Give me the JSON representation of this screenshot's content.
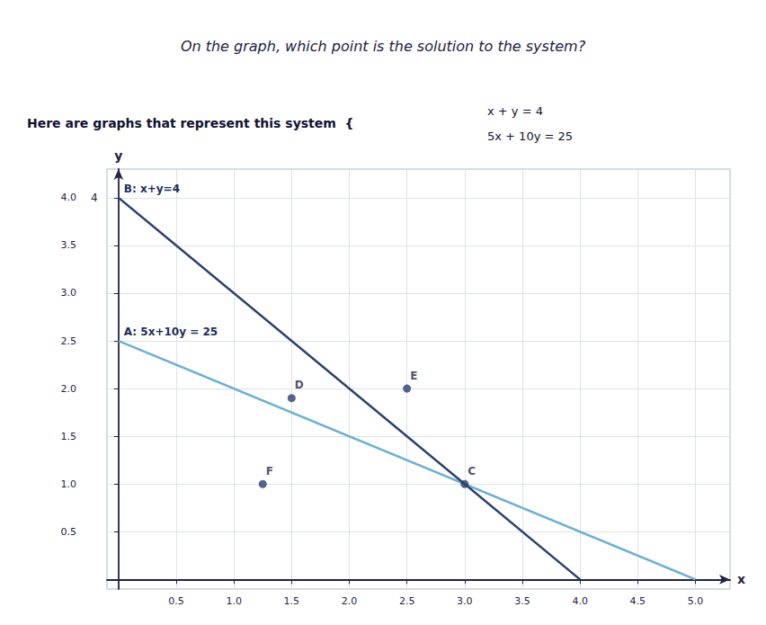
{
  "chart_data": {
    "type": "line",
    "title": "On the graph, which point is the solution to the system?",
    "subtitle": "Here are graphs that represent this system  {",
    "annotations": [
      {
        "text": "x + y = 4"
      },
      {
        "text": "5x + 10y = 25"
      },
      {
        "text": "4",
        "x": -0.18,
        "y": 4.0
      }
    ],
    "xlabel": "x",
    "ylabel": "y",
    "series": [
      {
        "name": "A: 5x+10y = 25",
        "type": "line",
        "color": "#6ab0d4",
        "x": [
          0.0,
          5.0
        ],
        "values": [
          2.5,
          0.0
        ]
      },
      {
        "name": "B: x+y=4",
        "type": "line",
        "color": "#2a3f6f",
        "x": [
          0,
          4.0
        ],
        "values": [
          4.0,
          0.0
        ]
      },
      {
        "type": "scatter",
        "color": "#2a3f6f",
        "marker": "circle",
        "x": [
          1.5,
          2.5,
          3.0,
          1.25
        ],
        "values": [
          1.9,
          2.0,
          1.0,
          1.0
        ],
        "labels": [
          "D",
          "E",
          "C",
          "F"
        ]
      }
    ],
    "xlim": [
      -0.1,
      5.3
    ],
    "ylim": [
      -0.1,
      4.3
    ],
    "xticks": [
      0.5,
      {
        "value": 1.0,
        "label": "1.0"
      },
      1.5,
      {
        "value": 2.0,
        "label": "2.0"
      },
      2.5,
      {
        "value": 3.0,
        "label": "3.0"
      },
      3.5,
      {
        "value": 4.0,
        "label": "4.0"
      },
      4.5,
      {
        "value": 5.0,
        "label": "5.0"
      }
    ],
    "yticks": [
      0.5,
      {
        "value": 1.0,
        "label": "1.0"
      },
      1.5,
      {
        "value": 2.0,
        "label": "2.0"
      },
      2.5,
      {
        "value": 3.0,
        "label": "3.0"
      },
      3.5,
      {
        "value": 4.0,
        "label": "4.0"
      }
    ],
    "grid": true
  }
}
